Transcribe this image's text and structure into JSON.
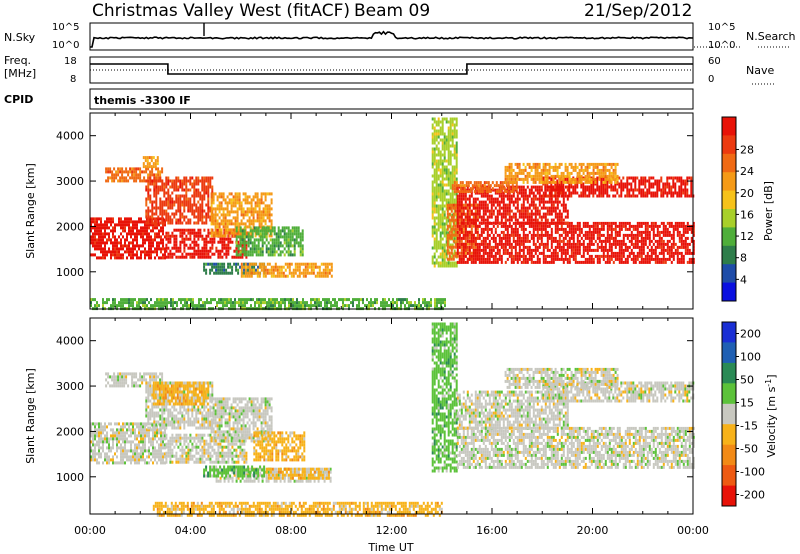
{
  "header": {
    "station": "Christmas Valley West (fitACF)",
    "beam": "Beam 09",
    "date": "21/Sep/2012"
  },
  "strip_nsky": {
    "left_label": "N.Sky",
    "left_ticks": [
      "10^5",
      "10^0"
    ],
    "right_label": "N.Search",
    "right_ticks": [
      "10^5",
      "10^0"
    ]
  },
  "strip_freq": {
    "left_label_1": "Freq.",
    "left_label_2": "[MHz]",
    "left_ticks": [
      "18",
      "8"
    ],
    "right_label": "Nave",
    "right_ticks": [
      "60",
      "0"
    ]
  },
  "strip_cpid": {
    "left_label": "CPID",
    "program": "themis -3300 IF"
  },
  "colors": {
    "power": [
      "#0a10e0",
      "#1e4ca8",
      "#2e7d4a",
      "#4fae3a",
      "#a8cf2a",
      "#f6c21a",
      "#f59a17",
      "#f06a14",
      "#ec3a10",
      "#e81208"
    ],
    "velocity": [
      "#1a2fd4",
      "#1f5fb3",
      "#2a8a55",
      "#5cc23a",
      "#c8c8c0",
      "#f7b21a",
      "#f28a16",
      "#ee5a12",
      "#e81208"
    ]
  },
  "chart_data": [
    {
      "type": "heatmap",
      "quantity": "Power",
      "xlabel": "",
      "ylabel": "Slant Range [km]",
      "x_unit": "hours UT",
      "xlim": [
        0,
        24
      ],
      "ylim": [
        180,
        4500
      ],
      "yticks": [
        "1000",
        "2000",
        "3000",
        "4000"
      ],
      "colorbar_label": "Power [dB]",
      "colorbar_ticks": [
        "4",
        "8",
        "12",
        "16",
        "20",
        "24",
        "28"
      ],
      "bands": [
        {
          "x": [
            0.0,
            3.0
          ],
          "y": [
            1300,
            2200
          ],
          "level": 9
        },
        {
          "x": [
            0.6,
            2.9
          ],
          "y": [
            3000,
            3300
          ],
          "level": 7
        },
        {
          "x": [
            2.1,
            2.7
          ],
          "y": [
            3300,
            3550
          ],
          "level": 6
        },
        {
          "x": [
            2.2,
            4.9
          ],
          "y": [
            2050,
            3100
          ],
          "level": 8
        },
        {
          "x": [
            3.0,
            6.2
          ],
          "y": [
            1300,
            1950
          ],
          "level": 9
        },
        {
          "x": [
            4.8,
            7.2
          ],
          "y": [
            1800,
            2750
          ],
          "level": 6
        },
        {
          "x": [
            5.8,
            8.5
          ],
          "y": [
            1350,
            2000
          ],
          "level": 3
        },
        {
          "x": [
            4.5,
            6.9
          ],
          "y": [
            1000,
            1200
          ],
          "level": 2
        },
        {
          "x": [
            6.0,
            9.6
          ],
          "y": [
            900,
            1200
          ],
          "level": 6
        },
        {
          "x": [
            0.0,
            14.1
          ],
          "y": [
            180,
            420
          ],
          "level": 3
        },
        {
          "x": [
            13.6,
            14.6
          ],
          "y": [
            1100,
            4400
          ],
          "level": 4
        },
        {
          "x": [
            14.2,
            15.4
          ],
          "y": [
            1300,
            2500
          ],
          "level": 7
        },
        {
          "x": [
            14.6,
            24.0
          ],
          "y": [
            1200,
            2100
          ],
          "level": 9
        },
        {
          "x": [
            14.6,
            19.0
          ],
          "y": [
            2100,
            2900
          ],
          "level": 9
        },
        {
          "x": [
            14.4,
            17.0
          ],
          "y": [
            2800,
            3000
          ],
          "level": 7
        },
        {
          "x": [
            18.0,
            24.0
          ],
          "y": [
            2700,
            3100
          ],
          "level": 9
        },
        {
          "x": [
            16.5,
            21.0
          ],
          "y": [
            3000,
            3400
          ],
          "level": 6
        }
      ]
    },
    {
      "type": "heatmap",
      "quantity": "Velocity",
      "xlabel": "Time UT",
      "ylabel": "Slant Range [km]",
      "x_unit": "hours UT",
      "xlim": [
        0,
        24
      ],
      "ylim": [
        180,
        4500
      ],
      "xticks": [
        "00:00",
        "04:00",
        "08:00",
        "12:00",
        "16:00",
        "20:00",
        "00:00"
      ],
      "yticks": [
        "1000",
        "2000",
        "3000",
        "4000"
      ],
      "colorbar_label": "Velocity [m s^-1]",
      "colorbar_ticks": [
        "200",
        "100",
        "50",
        "15",
        "-15",
        "-50",
        "-100",
        "-200"
      ],
      "bands": [
        {
          "x": [
            0.0,
            3.0
          ],
          "y": [
            1300,
            2200
          ],
          "level": 4
        },
        {
          "x": [
            0.6,
            2.9
          ],
          "y": [
            3000,
            3300
          ],
          "level": 4
        },
        {
          "x": [
            2.2,
            4.9
          ],
          "y": [
            2050,
            3100
          ],
          "level": 4
        },
        {
          "x": [
            3.0,
            6.2
          ],
          "y": [
            1300,
            1950
          ],
          "level": 4
        },
        {
          "x": [
            2.5,
            4.7
          ],
          "y": [
            2600,
            3100
          ],
          "level": 5
        },
        {
          "x": [
            4.8,
            7.2
          ],
          "y": [
            1800,
            2750
          ],
          "level": 4
        },
        {
          "x": [
            6.5,
            8.5
          ],
          "y": [
            1400,
            2000
          ],
          "level": 5
        },
        {
          "x": [
            5.0,
            9.6
          ],
          "y": [
            900,
            1200
          ],
          "level": 4
        },
        {
          "x": [
            7.0,
            9.5
          ],
          "y": [
            1000,
            1200
          ],
          "level": 5
        },
        {
          "x": [
            4.5,
            6.9
          ],
          "y": [
            1000,
            1250
          ],
          "level": 3
        },
        {
          "x": [
            2.5,
            14.0
          ],
          "y": [
            180,
            450
          ],
          "level": 5
        },
        {
          "x": [
            13.6,
            14.6
          ],
          "y": [
            1100,
            4400
          ],
          "level": 3
        },
        {
          "x": [
            14.6,
            24.0
          ],
          "y": [
            1200,
            2100
          ],
          "level": 4
        },
        {
          "x": [
            14.6,
            19.0
          ],
          "y": [
            2100,
            2900
          ],
          "level": 4
        },
        {
          "x": [
            18.0,
            24.0
          ],
          "y": [
            2700,
            3100
          ],
          "level": 4
        },
        {
          "x": [
            16.5,
            21.0
          ],
          "y": [
            3000,
            3400
          ],
          "level": 4
        }
      ]
    }
  ]
}
